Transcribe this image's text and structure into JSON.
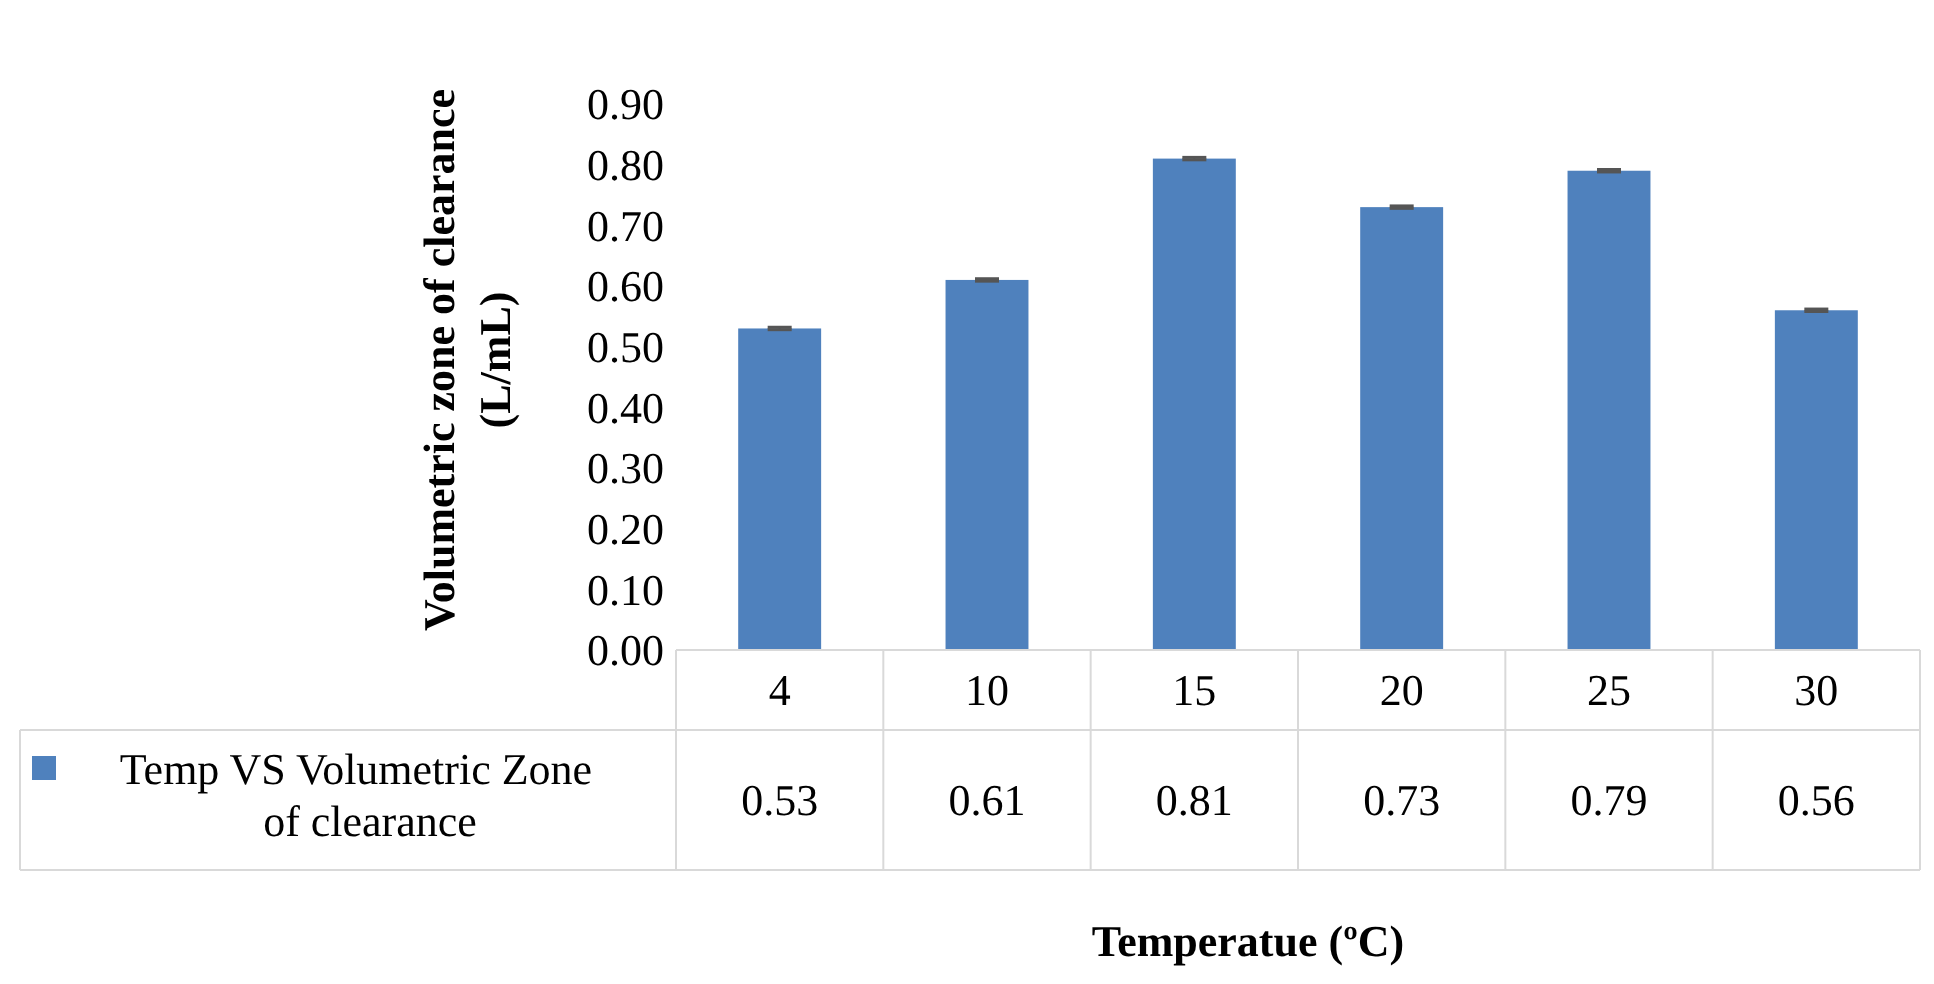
{
  "chart_data": {
    "type": "bar",
    "xlabel": "Temperatue (ºC)",
    "ylabel": "Volumetric zone of clearance (L/mL)",
    "categories": [
      "4",
      "10",
      "15",
      "20",
      "25",
      "30"
    ],
    "series": [
      {
        "name": "Temp VS Volumetric Zone of clearance",
        "color": "#4f81bd",
        "values": [
          0.53,
          0.61,
          0.81,
          0.73,
          0.79,
          0.56
        ],
        "errors": [
          0.002,
          0.002,
          0.002,
          0.002,
          0.002,
          0.002
        ]
      }
    ],
    "ylim": [
      0,
      0.9
    ],
    "yticks": [
      {
        "value": 0,
        "label": "0.00"
      },
      {
        "value": 0.1,
        "label": "0.10"
      },
      {
        "value": 0.2,
        "label": "0.20"
      },
      {
        "value": 0.3,
        "label": "0.30"
      },
      {
        "value": 0.4,
        "label": "0.40"
      },
      {
        "value": 0.5,
        "label": "0.50"
      },
      {
        "value": 0.6,
        "label": "0.60"
      },
      {
        "value": 0.7,
        "label": "0.70"
      },
      {
        "value": 0.8,
        "label": "0.80"
      },
      {
        "value": 0.9,
        "label": "0.90"
      }
    ],
    "data_labels": true,
    "grid": false,
    "legend": "bottom"
  }
}
